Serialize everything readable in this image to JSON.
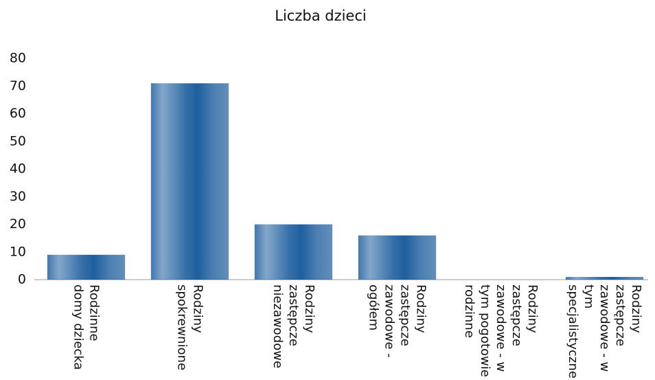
{
  "chart_data": {
    "type": "bar",
    "title": "Liczba dzieci",
    "categories": [
      "Rodzinne domy dziecka",
      "Rodziny spokrewnione",
      "Rodziny zastępcze niezawodowe",
      "Rodziny zastępcze zawodowe - ogółem",
      "Rodziny zastępcze zawodowe - w tym pogotowie rodzinne",
      "Rodziny zastępcze zawodowe - w tym specjalistyczne"
    ],
    "values": [
      9,
      71,
      20,
      16,
      0,
      1
    ],
    "color": "#1f5f9e",
    "ylim": [
      0,
      80
    ],
    "yticks": [
      0,
      10,
      20,
      30,
      40,
      50,
      60,
      70,
      80
    ],
    "grid": false
  }
}
